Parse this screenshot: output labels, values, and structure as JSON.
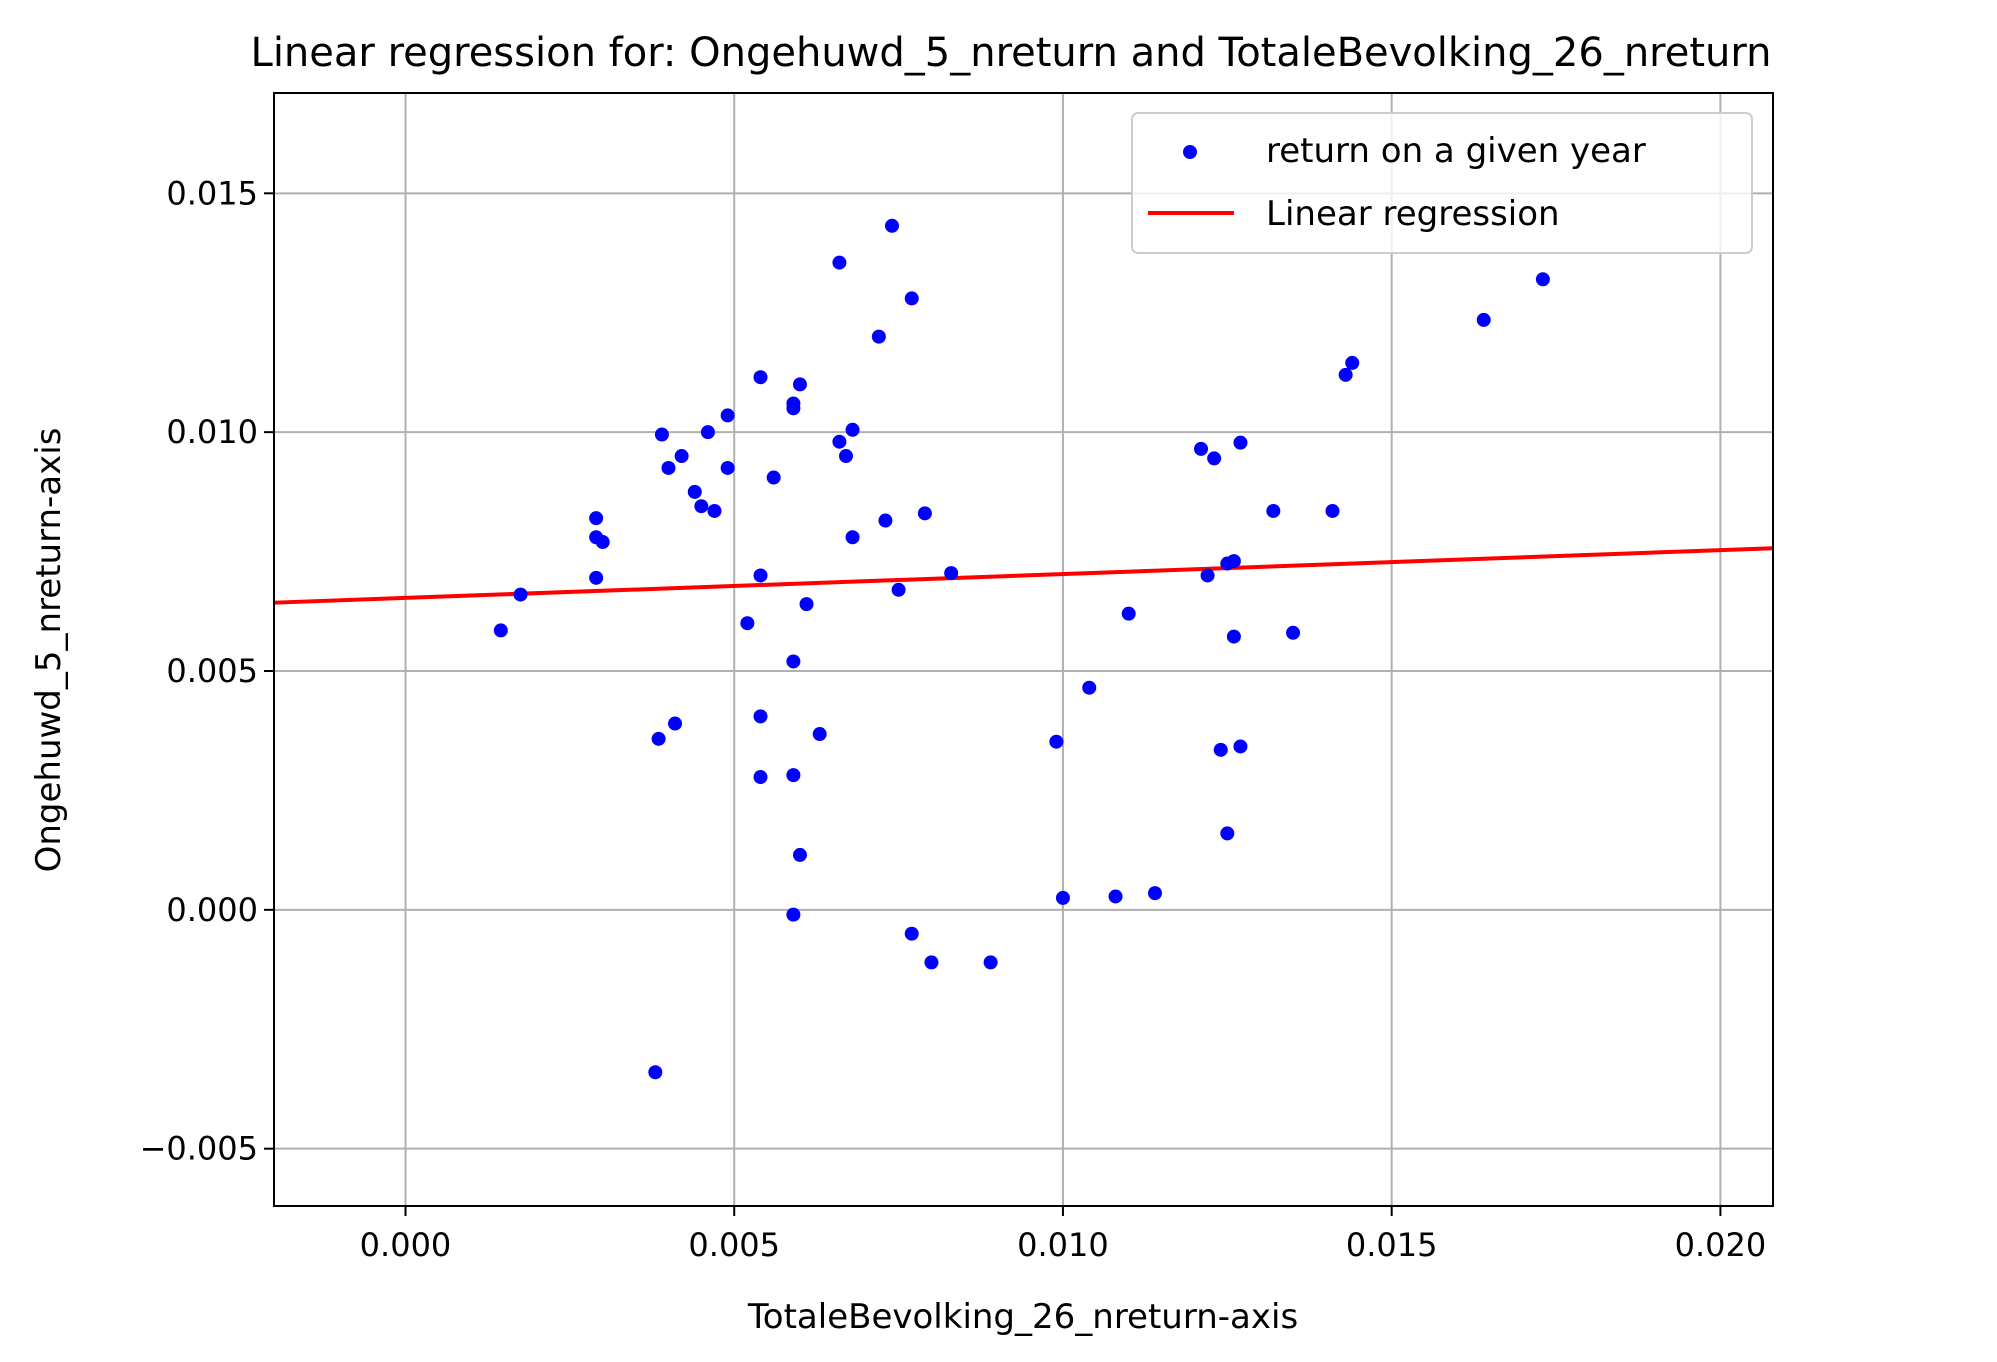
{
  "chart_data": {
    "type": "scatter",
    "title": "Linear regression for: Ongehuwd_5_nreturn and TotaleBevolking_26_nreturn",
    "xlabel": "TotaleBevolking_26_nreturn-axis",
    "ylabel": "Ongehuwd_5_nreturn-axis",
    "xlim": [
      -0.002,
      0.0208
    ],
    "ylim": [
      -0.0062,
      0.0171
    ],
    "xticks": [
      0.0,
      0.005,
      0.01,
      0.015,
      0.02
    ],
    "xtick_labels": [
      "0.000",
      "0.005",
      "0.010",
      "0.015",
      "0.020"
    ],
    "yticks": [
      -0.005,
      0.0,
      0.005,
      0.01,
      0.015
    ],
    "ytick_labels": [
      "−0.005",
      "0.000",
      "0.005",
      "0.010",
      "0.015"
    ],
    "grid": true,
    "legend_position": "top-right",
    "series": [
      {
        "name": "return on a given year",
        "type": "scatter",
        "color": "#0000ff",
        "points": [
          [
            0.00145,
            0.00585
          ],
          [
            0.00175,
            0.0066
          ],
          [
            0.0029,
            0.0082
          ],
          [
            0.0029,
            0.0078
          ],
          [
            0.003,
            0.0077
          ],
          [
            0.0029,
            0.00695
          ],
          [
            0.0038,
            -0.0034
          ],
          [
            0.00385,
            0.00358
          ],
          [
            0.0039,
            0.00995
          ],
          [
            0.004,
            0.00925
          ],
          [
            0.0041,
            0.0039
          ],
          [
            0.0042,
            0.0095
          ],
          [
            0.0044,
            0.00875
          ],
          [
            0.0045,
            0.00845
          ],
          [
            0.0046,
            0.01
          ],
          [
            0.0047,
            0.00835
          ],
          [
            0.0049,
            0.00925
          ],
          [
            0.0049,
            0.01035
          ],
          [
            0.0052,
            0.006
          ],
          [
            0.0054,
            0.01115
          ],
          [
            0.0054,
            0.007
          ],
          [
            0.0054,
            0.00405
          ],
          [
            0.0054,
            0.00278
          ],
          [
            0.0056,
            0.00905
          ],
          [
            0.0059,
            0.0106
          ],
          [
            0.0059,
            0.0105
          ],
          [
            0.0059,
            0.0052
          ],
          [
            0.0059,
            0.00282
          ],
          [
            0.0059,
            -0.0001
          ],
          [
            0.006,
            0.011
          ],
          [
            0.006,
            0.00115
          ],
          [
            0.0061,
            0.0064
          ],
          [
            0.0063,
            0.00368
          ],
          [
            0.0066,
            0.01355
          ],
          [
            0.0066,
            0.0098
          ],
          [
            0.0067,
            0.0095
          ],
          [
            0.0068,
            0.01005
          ],
          [
            0.0068,
            0.0078
          ],
          [
            0.0072,
            0.012
          ],
          [
            0.0073,
            0.00815
          ],
          [
            0.0074,
            0.01432
          ],
          [
            0.0075,
            0.0067
          ],
          [
            0.0077,
            0.0128
          ],
          [
            0.0077,
            -0.0005
          ],
          [
            0.0079,
            0.0083
          ],
          [
            0.008,
            -0.0011
          ],
          [
            0.0083,
            0.00705
          ],
          [
            0.0089,
            -0.0011
          ],
          [
            0.0099,
            0.00352
          ],
          [
            0.01,
            0.00025
          ],
          [
            0.0104,
            0.00465
          ],
          [
            0.0108,
            0.00028
          ],
          [
            0.011,
            0.0062
          ],
          [
            0.0114,
            0.00035
          ],
          [
            0.0121,
            0.00965
          ],
          [
            0.0122,
            0.007
          ],
          [
            0.0123,
            0.00945
          ],
          [
            0.0124,
            0.00335
          ],
          [
            0.0125,
            0.0016
          ],
          [
            0.0125,
            0.00725
          ],
          [
            0.0126,
            0.00572
          ],
          [
            0.0126,
            0.0073
          ],
          [
            0.0127,
            0.00978
          ],
          [
            0.0127,
            0.00342
          ],
          [
            0.0132,
            0.00835
          ],
          [
            0.0135,
            0.0058
          ],
          [
            0.0141,
            0.00835
          ],
          [
            0.0143,
            0.0112
          ],
          [
            0.0144,
            0.01145
          ],
          [
            0.0164,
            0.01235
          ],
          [
            0.0173,
            0.0132
          ]
        ]
      },
      {
        "name": "Linear regression",
        "type": "line",
        "color": "#ff0000",
        "points": [
          [
            -0.002,
            0.00643
          ],
          [
            0.0208,
            0.00757
          ]
        ]
      }
    ]
  }
}
